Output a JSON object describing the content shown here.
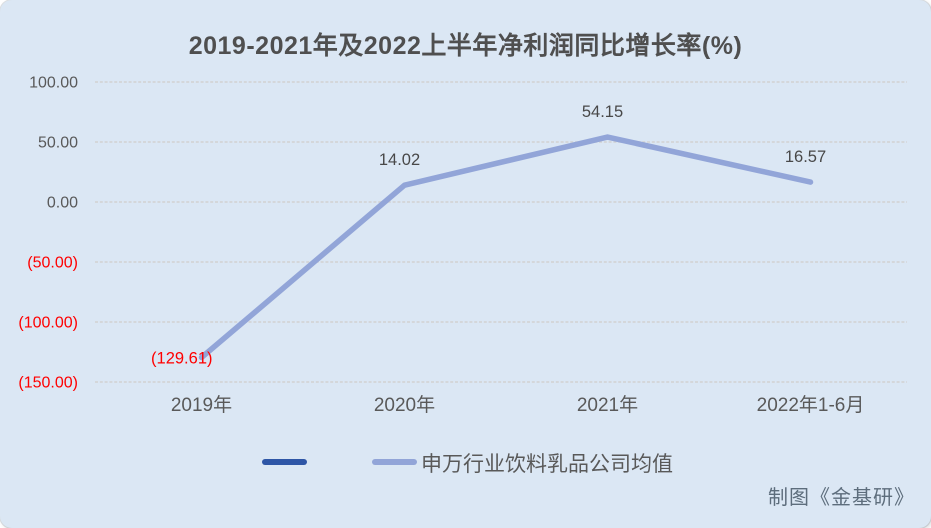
{
  "chart_data": {
    "type": "line",
    "title": "2019-2021年及2022上半年净利润同比增长率(%)",
    "categories": [
      "2019年",
      "2020年",
      "2021年",
      "2022年1-6月"
    ],
    "series": [
      {
        "name": "",
        "color": "#2e56a6",
        "values": []
      },
      {
        "name": "申万行业饮料乳品公司均值",
        "color": "#92a5d8",
        "values": [
          -129.61,
          14.02,
          54.15,
          16.57
        ]
      }
    ],
    "data_labels": [
      "(129.61)",
      "14.02",
      "54.15",
      "16.57"
    ],
    "yticks": [
      100,
      50,
      0,
      -50,
      -100,
      -150
    ],
    "ytick_labels": [
      "100.00",
      "50.00",
      "0.00",
      "(50.00)",
      "(100.00)",
      "(150.00)"
    ],
    "ylim": [
      -150,
      100
    ],
    "grid": true,
    "legend_position": "bottom",
    "colors": {
      "background": "#dbe7f4",
      "gridline": "#d2d2d2",
      "axis_label": "#595959",
      "negative": "#ff0000",
      "data_label": "#484848",
      "title": "#4f4f4f"
    }
  },
  "footer": {
    "credit": "制图《金基研》"
  }
}
